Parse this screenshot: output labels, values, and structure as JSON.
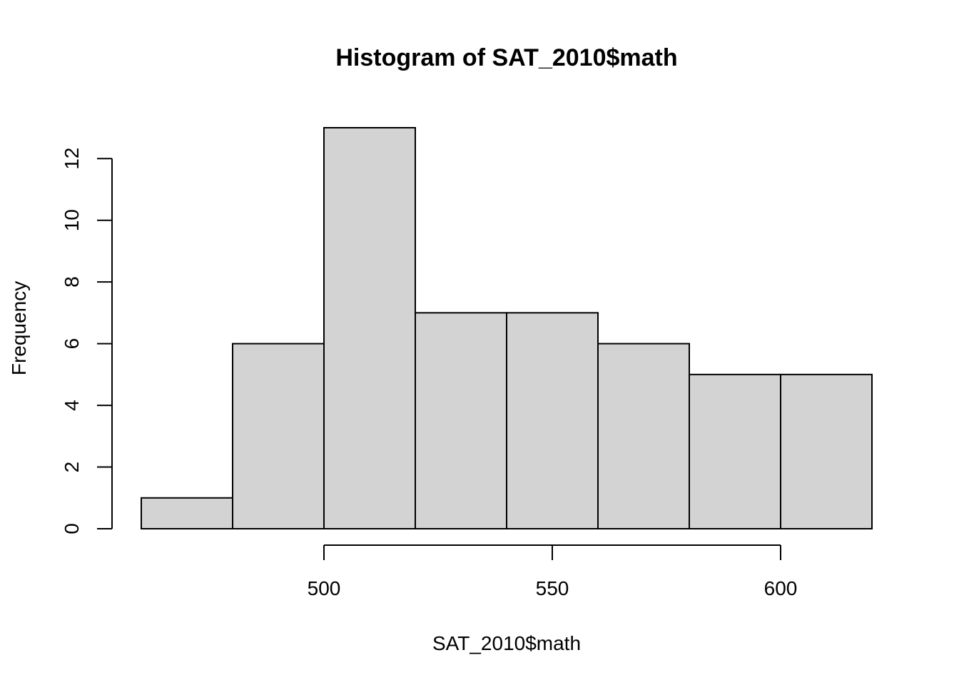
{
  "chart_data": {
    "type": "bar",
    "title": "Histogram of SAT_2010$math",
    "xlabel": "SAT_2010$math",
    "ylabel": "Frequency",
    "bin_edges": [
      460,
      480,
      500,
      520,
      540,
      560,
      580,
      600,
      620
    ],
    "values": [
      1,
      6,
      13,
      7,
      7,
      6,
      5,
      5
    ],
    "xlim": [
      460,
      620
    ],
    "ylim": [
      0,
      13
    ],
    "x_ticks": [
      500,
      550,
      600
    ],
    "y_ticks": [
      0,
      2,
      4,
      6,
      8,
      10,
      12
    ],
    "bar_color": "#D3D3D3",
    "border_color": "#000000",
    "grid": false,
    "legend": "none"
  }
}
